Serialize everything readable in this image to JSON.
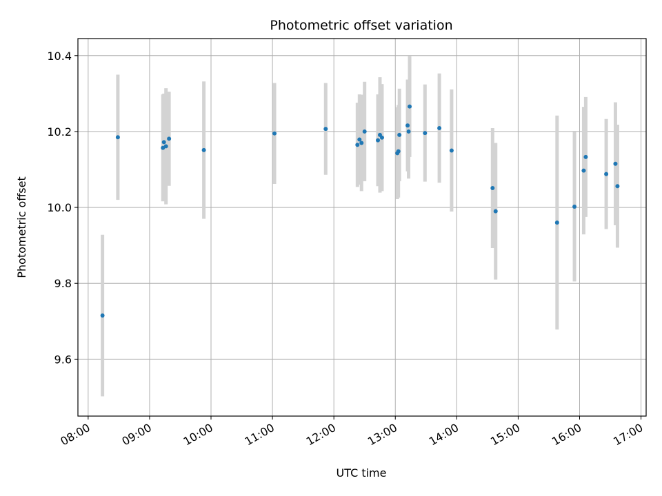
{
  "chart_data": {
    "type": "scatter",
    "title": "Photometric offset variation",
    "xlabel": "UTC time",
    "ylabel": "Photometric offset",
    "xlim": [
      "07:50",
      "17:05"
    ],
    "ylim": [
      9.45,
      10.445
    ],
    "x_ticks": [
      "08:00",
      "09:00",
      "10:00",
      "11:00",
      "12:00",
      "13:00",
      "14:00",
      "15:00",
      "16:00",
      "17:00"
    ],
    "y_ticks": [
      "9.6",
      "9.8",
      "10.0",
      "10.2",
      "10.4"
    ],
    "grid": true,
    "point_color": "#1f77b4",
    "errorbar_color": "#d3d3d3",
    "points": [
      {
        "x": "08:14",
        "y": 9.715,
        "yerr": 0.213
      },
      {
        "x": "08:29",
        "y": 10.185,
        "yerr": 0.165
      },
      {
        "x": "09:13",
        "y": 10.157,
        "yerr": 0.141
      },
      {
        "x": "09:14",
        "y": 10.172,
        "yerr": 0.128
      },
      {
        "x": "09:16",
        "y": 10.161,
        "yerr": 0.153
      },
      {
        "x": "09:19",
        "y": 10.181,
        "yerr": 0.124
      },
      {
        "x": "09:53",
        "y": 10.151,
        "yerr": 0.181
      },
      {
        "x": "11:02",
        "y": 10.195,
        "yerr": 0.133
      },
      {
        "x": "11:52",
        "y": 10.207,
        "yerr": 0.121
      },
      {
        "x": "12:23",
        "y": 10.165,
        "yerr": 0.111
      },
      {
        "x": "12:25",
        "y": 10.179,
        "yerr": 0.119
      },
      {
        "x": "12:27",
        "y": 10.17,
        "yerr": 0.127
      },
      {
        "x": "12:30",
        "y": 10.2,
        "yerr": 0.131
      },
      {
        "x": "12:43",
        "y": 10.177,
        "yerr": 0.121
      },
      {
        "x": "12:45",
        "y": 10.191,
        "yerr": 0.152
      },
      {
        "x": "12:47",
        "y": 10.184,
        "yerr": 0.141
      },
      {
        "x": "13:02",
        "y": 10.143,
        "yerr": 0.121
      },
      {
        "x": "13:03",
        "y": 10.148,
        "yerr": 0.122
      },
      {
        "x": "13:04",
        "y": 10.191,
        "yerr": 0.122
      },
      {
        "x": "13:12",
        "y": 10.216,
        "yerr": 0.121
      },
      {
        "x": "13:13",
        "y": 10.2,
        "yerr": 0.124
      },
      {
        "x": "13:14",
        "y": 10.266,
        "yerr": 0.133
      },
      {
        "x": "13:29",
        "y": 10.196,
        "yerr": 0.128
      },
      {
        "x": "13:43",
        "y": 10.209,
        "yerr": 0.144
      },
      {
        "x": "13:55",
        "y": 10.15,
        "yerr": 0.161
      },
      {
        "x": "14:35",
        "y": 10.051,
        "yerr": 0.158
      },
      {
        "x": "14:38",
        "y": 9.99,
        "yerr": 0.18
      },
      {
        "x": "15:38",
        "y": 9.96,
        "yerr": 0.282
      },
      {
        "x": "15:55",
        "y": 10.002,
        "yerr": 0.197
      },
      {
        "x": "16:04",
        "y": 10.097,
        "yerr": 0.168
      },
      {
        "x": "16:06",
        "y": 10.133,
        "yerr": 0.158
      },
      {
        "x": "16:26",
        "y": 10.088,
        "yerr": 0.145
      },
      {
        "x": "16:35",
        "y": 10.115,
        "yerr": 0.162
      },
      {
        "x": "16:37",
        "y": 10.056,
        "yerr": 0.162
      }
    ]
  }
}
